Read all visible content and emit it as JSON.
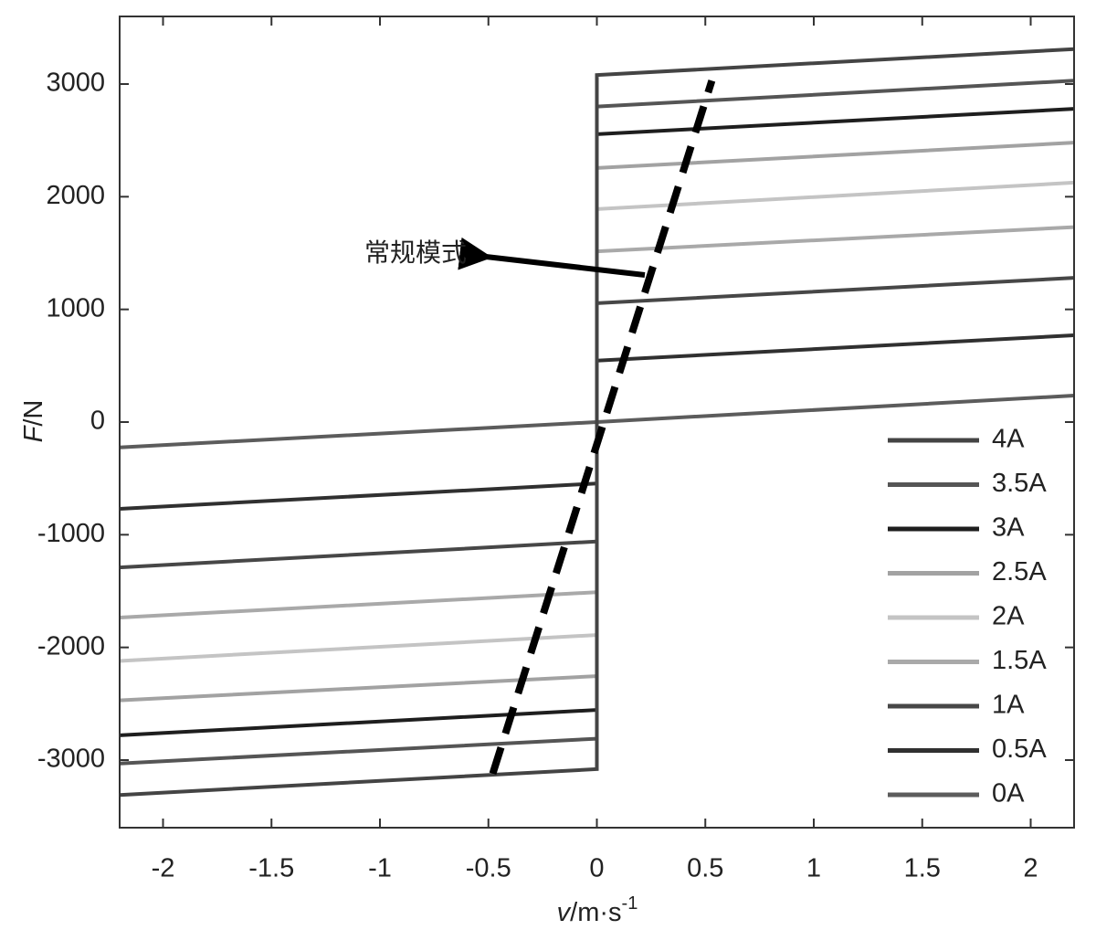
{
  "chart_data": {
    "type": "line",
    "xlabel": {
      "symbol": "v",
      "unit": "/m·s",
      "exponent": "-1"
    },
    "ylabel": {
      "symbol": "F",
      "unit": "/N"
    },
    "annotation": "常规模式",
    "xlim": [
      -2.2,
      2.2
    ],
    "ylim": [
      -3600,
      3600
    ],
    "xticks": [
      -2,
      -1.5,
      -1,
      -0.5,
      0,
      0.5,
      1,
      1.5,
      2
    ],
    "yticks": [
      -3000,
      -2000,
      -1000,
      0,
      1000,
      2000,
      3000
    ],
    "legend": "lower right",
    "x": [
      -2.2,
      0,
      0,
      2.2
    ],
    "series": [
      {
        "name": "4A",
        "color": "#444444",
        "values": [
          -3310,
          -3080,
          3080,
          3310
        ]
      },
      {
        "name": "3.5A",
        "color": "#555555",
        "values": [
          -3030,
          -2810,
          2800,
          3030
        ]
      },
      {
        "name": "3A",
        "color": "#1e1e1e",
        "values": [
          -2780,
          -2555,
          2555,
          2780
        ]
      },
      {
        "name": "2.5A",
        "color": "#a2a2a2",
        "values": [
          -2470,
          -2255,
          2255,
          2480
        ]
      },
      {
        "name": "2A",
        "color": "#c4c4c4",
        "values": [
          -2120,
          -1890,
          1890,
          2125
        ]
      },
      {
        "name": "1.5A",
        "color": "#a9a9a9",
        "values": [
          -1735,
          -1510,
          1515,
          1730
        ]
      },
      {
        "name": "1A",
        "color": "#474747",
        "values": [
          -1290,
          -1060,
          1055,
          1280
        ]
      },
      {
        "name": "0.5A",
        "color": "#303030",
        "values": [
          -770,
          -545,
          545,
          770
        ]
      },
      {
        "name": "0A",
        "color": "#5c5c5c",
        "values": [
          -225,
          0,
          0,
          235
        ]
      }
    ],
    "dashed_line": {
      "color": "#000000",
      "x": [
        -0.48,
        0.53
      ],
      "values": [
        -3120,
        3030
      ]
    }
  }
}
